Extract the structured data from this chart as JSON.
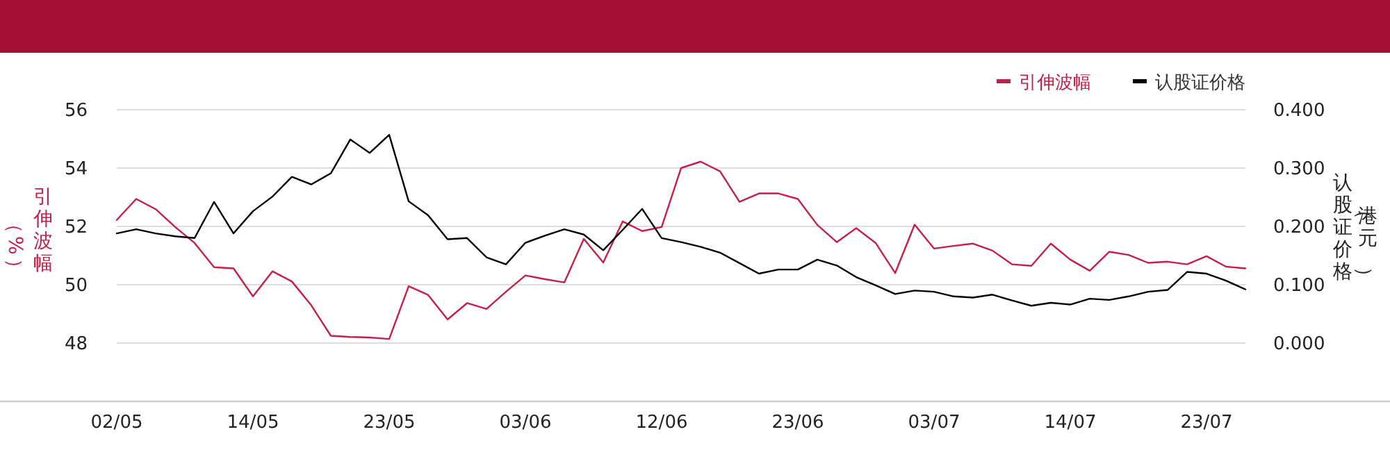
{
  "chart_data": {
    "type": "line",
    "categories": [
      "02/05",
      null,
      null,
      null,
      null,
      null,
      null,
      "14/05",
      null,
      null,
      null,
      null,
      null,
      null,
      "23/05",
      null,
      null,
      null,
      null,
      null,
      null,
      "03/06",
      null,
      null,
      null,
      null,
      null,
      null,
      "12/06",
      null,
      null,
      null,
      null,
      null,
      null,
      "23/06",
      null,
      null,
      null,
      null,
      null,
      null,
      "03/07",
      null,
      null,
      null,
      null,
      null,
      null,
      "14/07",
      null,
      null,
      null,
      null,
      null,
      null,
      "23/07",
      null,
      null
    ],
    "series": [
      {
        "name": "引伸波幅",
        "color": "#c41e4a",
        "values": [
          52.22,
          52.94,
          52.59,
          51.98,
          51.43,
          50.6,
          50.56,
          49.6,
          50.46,
          50.11,
          49.29,
          48.25,
          48.21,
          48.19,
          48.14,
          49.95,
          49.65,
          48.81,
          49.37,
          49.17,
          49.76,
          50.32,
          50.19,
          50.08,
          51.57,
          50.76,
          52.17,
          51.84,
          51.98,
          54.0,
          54.22,
          53.89,
          52.84,
          53.13,
          53.13,
          52.94,
          52.05,
          51.46,
          51.94,
          51.43,
          50.4,
          52.06,
          51.24,
          51.33,
          51.41,
          51.17,
          50.7,
          50.65,
          51.41,
          50.86,
          50.48,
          51.13,
          51.02,
          50.75,
          50.79,
          50.7,
          50.98,
          50.62,
          50.56
        ]
      },
      {
        "name": "认股证价格",
        "color": "#000000",
        "axis": "y2",
        "values": [
          0.188,
          0.195,
          0.188,
          0.183,
          0.18,
          0.242,
          0.188,
          0.226,
          0.251,
          0.285,
          0.272,
          0.291,
          0.349,
          0.326,
          0.357,
          0.243,
          0.219,
          0.178,
          0.18,
          0.147,
          0.135,
          0.172,
          0.184,
          0.195,
          0.186,
          0.159,
          0.194,
          0.23,
          0.18,
          0.173,
          0.165,
          0.155,
          0.137,
          0.119,
          0.126,
          0.126,
          0.143,
          0.133,
          0.113,
          0.099,
          0.084,
          0.09,
          0.088,
          0.08,
          0.078,
          0.083,
          0.073,
          0.064,
          0.069,
          0.066,
          0.076,
          0.074,
          0.08,
          0.088,
          0.091,
          0.122,
          0.119,
          0.107,
          0.092
        ]
      }
    ],
    "ylabel": "引伸波幅（%）",
    "y2label": "认股证价格（港元）",
    "ylim": [
      46,
      56
    ],
    "yticks": [
      48,
      50,
      52,
      54,
      56
    ],
    "y2lim": [
      -0.1,
      0.4
    ],
    "y2ticks": [
      {
        "value": 0,
        "label": "0.000"
      },
      {
        "value": 0.1,
        "label": "0.100"
      },
      {
        "value": 0.2,
        "label": "0.200"
      },
      {
        "value": 0.3,
        "label": "0.300"
      },
      {
        "value": 0.4,
        "label": "0.400"
      }
    ],
    "grid": "y",
    "legend": "top right"
  }
}
